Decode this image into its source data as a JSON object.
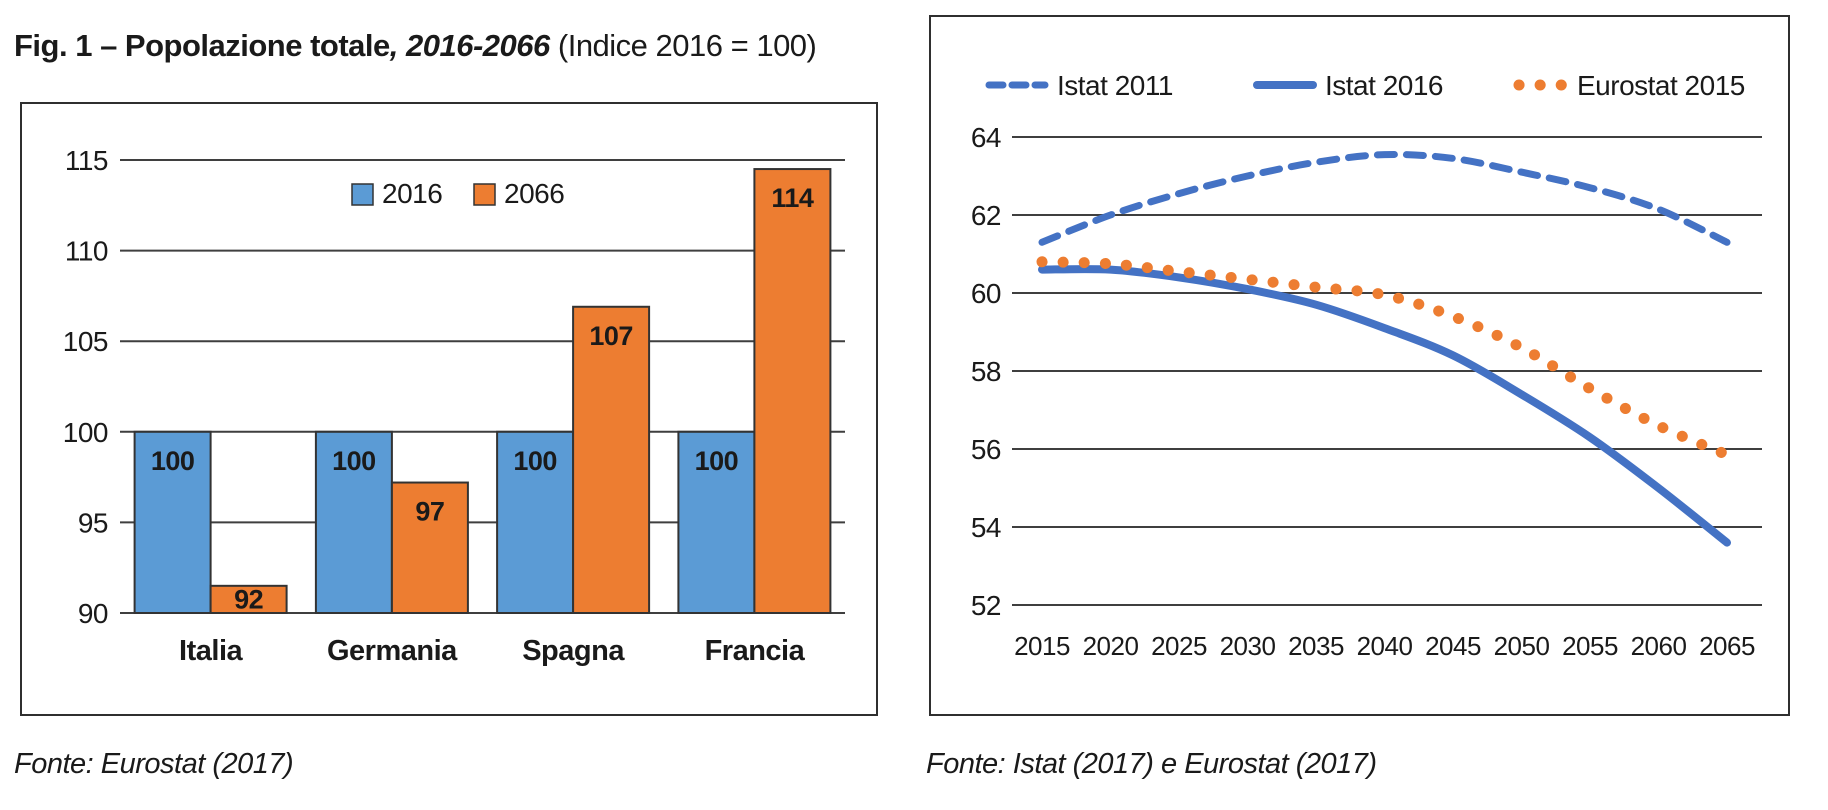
{
  "figure_title": {
    "bold": "Fig. 1 – Popolazione totale",
    "italic": ", 2016-2066",
    "rest": " (Indice 2016 = 100)"
  },
  "style": {
    "grid_color": "#3f3f3f",
    "text_color": "#1a1a1a",
    "bar_border_color": "#333333",
    "value_label_color": "#ffffff",
    "blue_bar": "#5B9BD5",
    "orange": "#ED7D31",
    "blue_line": "#4472C4"
  },
  "chart_data": [
    {
      "type": "bar",
      "title": "Fig. 1 – Popolazione totale, 2016-2066 (Indice 2016 = 100)",
      "categories": [
        "Italia",
        "Germania",
        "Spagna",
        "Francia"
      ],
      "series": [
        {
          "name": "2016",
          "color": "#5B9BD5",
          "values": [
            100,
            100,
            100,
            100
          ],
          "data_labels": [
            "100",
            "100",
            "100",
            "100"
          ]
        },
        {
          "name": "2066",
          "color": "#ED7D31",
          "values": [
            91.5,
            97.2,
            106.9,
            114.5
          ],
          "data_labels": [
            "92",
            "97",
            "107",
            "114"
          ]
        }
      ],
      "ylim": [
        90,
        115
      ],
      "yticks": [
        115,
        110,
        105,
        100,
        95,
        90
      ],
      "grid": true,
      "legend_position": "top-center",
      "source": "Fonte: Eurostat (2017)"
    },
    {
      "type": "line",
      "x": [
        2015,
        2020,
        2025,
        2030,
        2035,
        2040,
        2045,
        2050,
        2055,
        2060,
        2065
      ],
      "series": [
        {
          "name": "Istat 2011",
          "style": "dashed",
          "color": "#4472C4",
          "values": [
            61.3,
            62.0,
            62.55,
            63.0,
            63.35,
            63.55,
            63.45,
            63.1,
            62.7,
            62.15,
            61.3
          ]
        },
        {
          "name": "Istat 2016",
          "style": "solid",
          "color": "#4472C4",
          "values": [
            60.6,
            60.6,
            60.4,
            60.1,
            59.7,
            59.1,
            58.4,
            57.4,
            56.3,
            55.0,
            53.6
          ]
        },
        {
          "name": "Eurostat 2015",
          "style": "dotted",
          "color": "#ED7D31",
          "values": [
            60.8,
            60.75,
            60.55,
            60.35,
            60.15,
            59.95,
            59.4,
            58.6,
            57.55,
            56.6,
            55.85
          ]
        }
      ],
      "ylim": [
        52,
        64
      ],
      "yticks": [
        64,
        62,
        60,
        58,
        56,
        54,
        52
      ],
      "xticks": [
        2015,
        2020,
        2025,
        2030,
        2035,
        2040,
        2045,
        2050,
        2055,
        2060,
        2065
      ],
      "grid": true,
      "legend_position": "top",
      "source": "Fonte: Istat (2017) e Eurostat (2017)"
    }
  ],
  "sources": {
    "left": "Fonte: Eurostat (2017)",
    "right": "Fonte: Istat (2017) e Eurostat (2017)"
  }
}
